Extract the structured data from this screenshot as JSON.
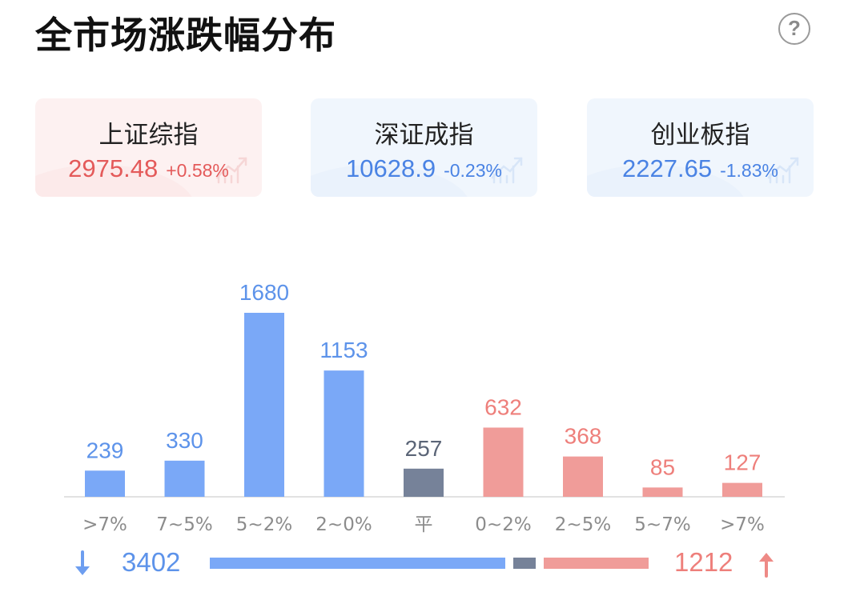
{
  "title": "全市场涨跌幅分布",
  "help_icon": "question-circle-icon",
  "indices": [
    {
      "name": "上证综指",
      "value": "2975.48",
      "change": "+0.58%",
      "trend": "up"
    },
    {
      "name": "深证成指",
      "value": "10628.9",
      "change": "-0.23%",
      "trend": "down"
    },
    {
      "name": "创业板指",
      "value": "2227.65",
      "change": "-1.83%",
      "trend": "down"
    }
  ],
  "colors": {
    "fall": "#7aa8f7",
    "flat": "#768299",
    "rise": "#f09c99",
    "fall_text": "#5d93ea",
    "flat_text": "#5b6577",
    "rise_text": "#ee7f7b",
    "axis_label": "#8c8c8c",
    "fall_arrow": "#6d9ef0",
    "rise_arrow": "#ee8a86"
  },
  "chart_data": {
    "type": "bar",
    "categories": [
      ">7%",
      "7~5%",
      "5~2%",
      "2~0%",
      "平",
      "0~2%",
      "2~5%",
      "5~7%",
      ">7%"
    ],
    "values": [
      239,
      330,
      1680,
      1153,
      257,
      632,
      368,
      85,
      127
    ],
    "groups": [
      "fall",
      "fall",
      "fall",
      "fall",
      "flat",
      "rise",
      "rise",
      "rise",
      "rise"
    ],
    "title": "",
    "xlabel": "",
    "ylabel": "",
    "ylim": [
      0,
      1680
    ]
  },
  "summary": {
    "fall_count": "3402",
    "rise_count": "1212",
    "fall_icon": "arrow-down-icon",
    "rise_icon": "arrow-up-icon"
  }
}
